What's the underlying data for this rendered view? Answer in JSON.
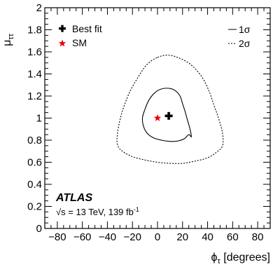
{
  "chart_data": {
    "type": "scatter",
    "xlabel": "ϕτ [degrees]",
    "xlabel_main": "ϕ",
    "xlabel_sub": "τ",
    "xlabel_unit": " [degrees]",
    "ylabel": "μττ",
    "ylabel_main": "μ",
    "ylabel_sub": "ττ",
    "xlim": [
      -90,
      90
    ],
    "ylim": [
      0,
      2
    ],
    "x_ticks": [
      -80,
      -60,
      -40,
      -20,
      0,
      20,
      40,
      60,
      80
    ],
    "x_tick_labels": [
      "−80",
      "−60",
      "−40",
      "−20",
      "0",
      "20",
      "40",
      "60",
      "80"
    ],
    "y_ticks": [
      0,
      0.2,
      0.4,
      0.6,
      0.8,
      1,
      1.2,
      1.4,
      1.6,
      1.8,
      2
    ],
    "y_tick_labels": [
      "0",
      "0.2",
      "0.4",
      "0.6",
      "0.8",
      "1",
      "1.2",
      "1.4",
      "1.6",
      "1.8",
      "2"
    ],
    "grid": false,
    "points": [
      {
        "name": "Best fit",
        "x": 9,
        "y": 1.02,
        "marker": "cross",
        "color": "#000000"
      },
      {
        "name": "SM",
        "x": 0,
        "y": 1.0,
        "marker": "star",
        "color": "#e8000b"
      }
    ],
    "contours": [
      {
        "name": "1σ",
        "style": "solid",
        "color": "#000000",
        "points": [
          [
            2,
            1.26
          ],
          [
            9,
            1.27
          ],
          [
            14,
            1.25
          ],
          [
            18,
            1.2
          ],
          [
            20,
            1.13
          ],
          [
            22,
            1.06
          ],
          [
            24,
            0.98
          ],
          [
            26,
            0.9
          ],
          [
            27,
            0.83
          ],
          [
            25,
            0.85
          ],
          [
            21,
            0.81
          ],
          [
            15,
            0.79
          ],
          [
            9,
            0.79
          ],
          [
            3,
            0.8
          ],
          [
            -3,
            0.82
          ],
          [
            -8,
            0.86
          ],
          [
            -11,
            0.92
          ],
          [
            -12,
            1.0
          ],
          [
            -10,
            1.08
          ],
          [
            -7,
            1.16
          ],
          [
            -3,
            1.22
          ]
        ]
      },
      {
        "name": "2σ",
        "style": "dashed",
        "color": "#000000",
        "points": [
          [
            0,
            1.55
          ],
          [
            8,
            1.57
          ],
          [
            16,
            1.55
          ],
          [
            26,
            1.49
          ],
          [
            35,
            1.38
          ],
          [
            41,
            1.25
          ],
          [
            45,
            1.12
          ],
          [
            49,
            0.99
          ],
          [
            52,
            0.86
          ],
          [
            52,
            0.75
          ],
          [
            47,
            0.69
          ],
          [
            40,
            0.64
          ],
          [
            30,
            0.61
          ],
          [
            20,
            0.59
          ],
          [
            10,
            0.59
          ],
          [
            0,
            0.6
          ],
          [
            -10,
            0.62
          ],
          [
            -20,
            0.65
          ],
          [
            -28,
            0.7
          ],
          [
            -32,
            0.76
          ],
          [
            -32,
            0.86
          ],
          [
            -30,
            0.98
          ],
          [
            -27,
            1.1
          ],
          [
            -22,
            1.24
          ],
          [
            -15,
            1.38
          ],
          [
            -8,
            1.49
          ]
        ]
      }
    ],
    "legend": {
      "left_placement": "top-left",
      "right_placement": "top-right",
      "best_fit_label": "Best fit",
      "sm_label": "SM",
      "one_sigma_label": "1σ",
      "two_sigma_label": "2σ"
    },
    "annotations": {
      "experiment": "ATLAS",
      "energy_text_a": "√s = 13 TeV, 139 fb",
      "energy_text_sup": "-1"
    }
  }
}
